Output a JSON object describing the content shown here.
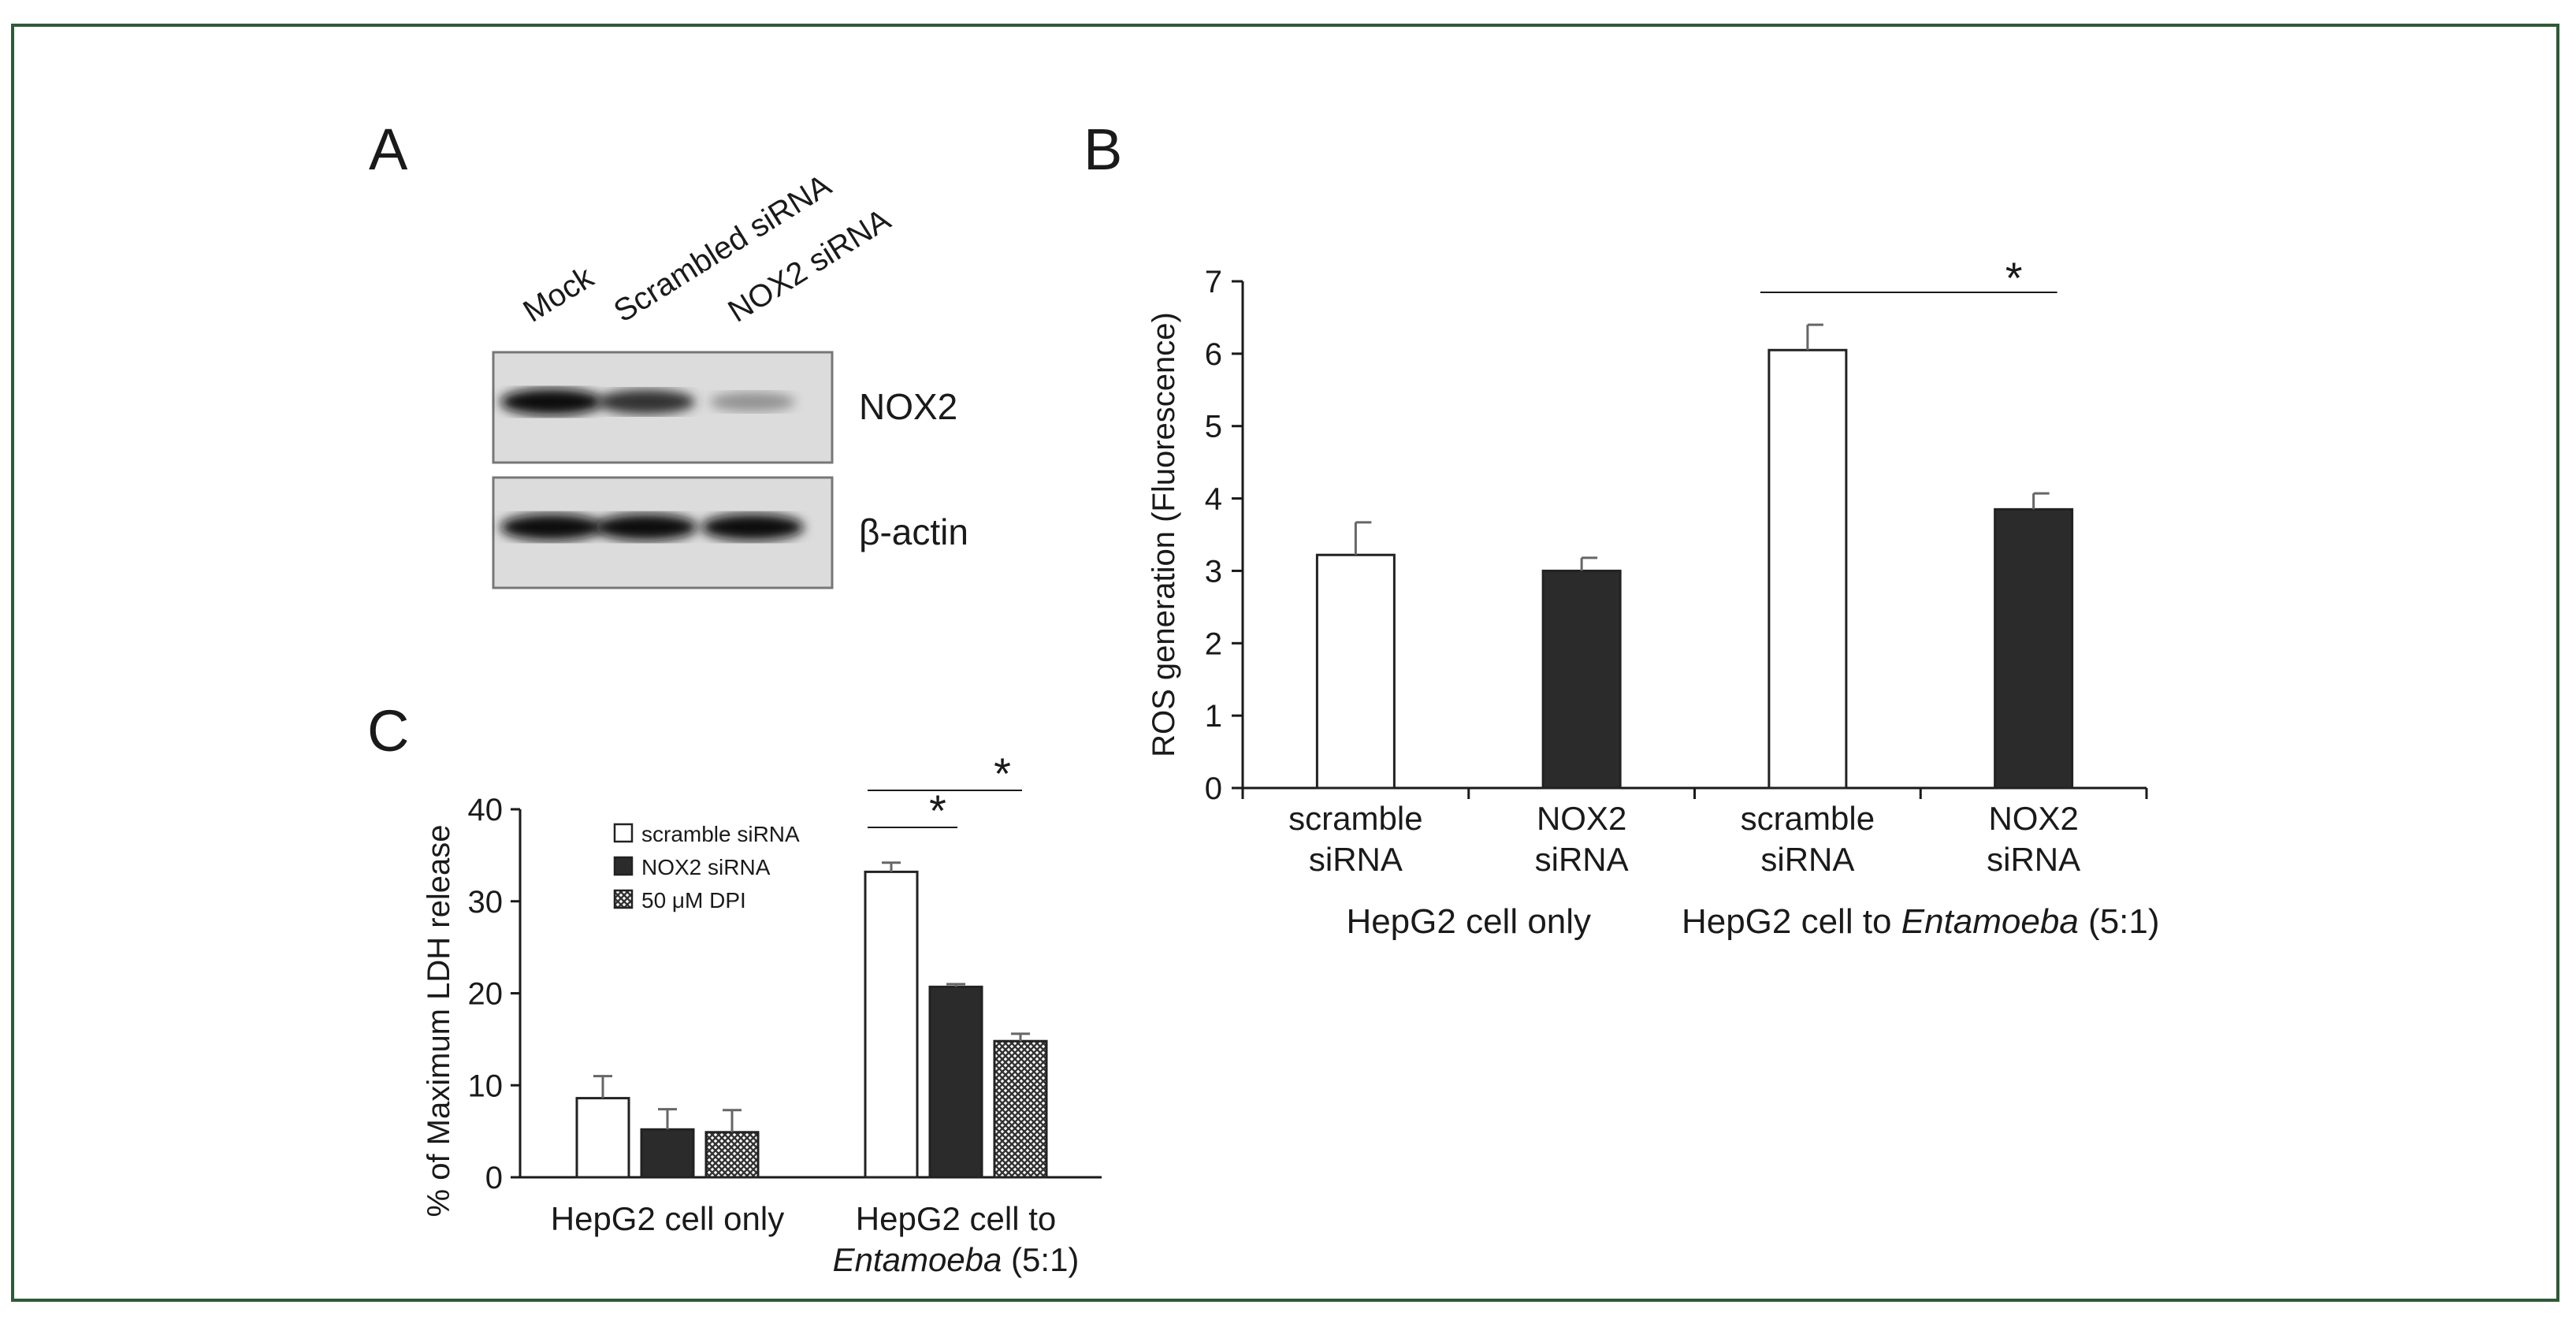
{
  "panels": {
    "A": {
      "letter": "A",
      "lane_labels": [
        "Mock",
        "Scrambled siRNA",
        "NOX2 siRNA"
      ],
      "blots": [
        {
          "label": "NOX2",
          "intensities": [
            1.0,
            0.85,
            0.45
          ]
        },
        {
          "label": "β-actin",
          "intensities": [
            1.0,
            1.0,
            1.0
          ]
        }
      ]
    },
    "B": {
      "letter": "B"
    },
    "C": {
      "letter": "C"
    }
  },
  "colors": {
    "frame": "#2e5a36",
    "bar_dark": "#2b2b2b",
    "bar_white": "#ffffff",
    "axis": "#1a1a1a",
    "error": "#666666"
  },
  "chart_data": [
    {
      "panel": "B",
      "type": "bar",
      "title": "",
      "ylabel": "ROS generation (Fluorescence)",
      "ylim": [
        0,
        7
      ],
      "yticks": [
        0,
        1,
        2,
        3,
        4,
        5,
        6,
        7
      ],
      "categories": [
        {
          "label_lines": [
            "scramble",
            "siRNA"
          ],
          "group": 0,
          "style": "white"
        },
        {
          "label_lines": [
            "NOX2",
            "siRNA"
          ],
          "group": 0,
          "style": "dark"
        },
        {
          "label_lines": [
            "scramble",
            "siRNA"
          ],
          "group": 1,
          "style": "white"
        },
        {
          "label_lines": [
            "NOX2",
            "siRNA"
          ],
          "group": 1,
          "style": "dark"
        }
      ],
      "values": [
        3.22,
        3.0,
        6.05,
        3.85
      ],
      "errors": [
        0.45,
        0.18,
        0.35,
        0.22
      ],
      "groups": [
        {
          "text": "HepG2 cell only",
          "italic_part": "",
          "suffix": ""
        },
        {
          "text": "HepG2 cell to ",
          "italic_part": "Entamoeba",
          "suffix": " (5:1)"
        }
      ],
      "significance": [
        {
          "from": 2,
          "to": 3,
          "label": "*"
        }
      ]
    },
    {
      "panel": "C",
      "type": "bar",
      "title": "",
      "ylabel": "% of Maximum LDH release",
      "ylim": [
        0,
        40
      ],
      "yticks": [
        0,
        10,
        20,
        30,
        40
      ],
      "series": [
        {
          "name": "scramble siRNA",
          "style": "white",
          "values": [
            8.6,
            33.2
          ],
          "errors": [
            2.4,
            1.0
          ]
        },
        {
          "name": "NOX2 siRNA",
          "style": "dark",
          "values": [
            5.2,
            20.7
          ],
          "errors": [
            2.2,
            0.3
          ]
        },
        {
          "name": "50 μM DPI",
          "style": "hatch",
          "values": [
            4.9,
            14.8
          ],
          "errors": [
            2.4,
            0.8
          ]
        }
      ],
      "groups": [
        {
          "line1": "HepG2 cell only",
          "line2_italic": "",
          "line2_suffix": ""
        },
        {
          "line1": "HepG2 cell to",
          "line2_italic": "Entamoeba",
          "line2_suffix": " (5:1)"
        }
      ],
      "legend_position": "top-left",
      "significance": [
        {
          "group": 1,
          "from_series": 0,
          "to_series": 1,
          "label": "*"
        },
        {
          "group": 1,
          "from_series": 0,
          "to_series": 2,
          "label": "*"
        }
      ]
    }
  ]
}
